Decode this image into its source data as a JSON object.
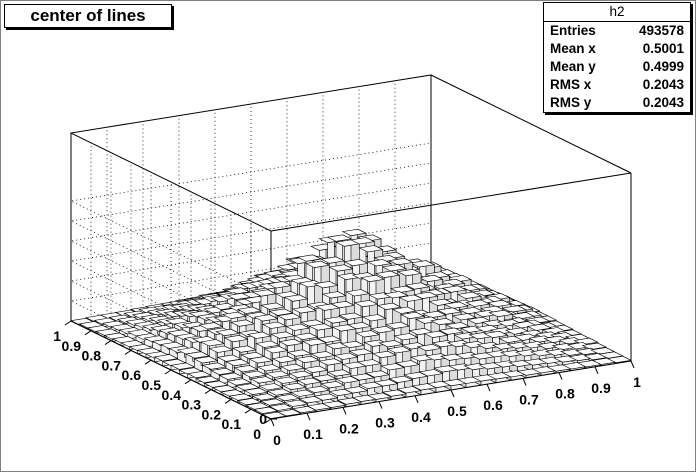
{
  "title": "center of lines",
  "stats": {
    "name": "h2",
    "rows": [
      {
        "label": "Entries",
        "value": "493578"
      },
      {
        "label": "Mean x",
        "value": "0.5001"
      },
      {
        "label": "Mean y",
        "value": "0.4999"
      },
      {
        "label": "RMS x",
        "value": "0.2043"
      },
      {
        "label": "RMS y",
        "value": "0.2043"
      }
    ]
  },
  "chart_data": {
    "type": "lego3d",
    "title": "center of lines",
    "x_ticks": [
      "0",
      "0.1",
      "0.2",
      "0.3",
      "0.4",
      "0.5",
      "0.6",
      "0.7",
      "0.8",
      "0.9",
      "1"
    ],
    "y_ticks": [
      "0",
      "0.1",
      "0.2",
      "0.3",
      "0.4",
      "0.5",
      "0.6",
      "0.7",
      "0.8",
      "0.9",
      "1"
    ],
    "z_ticks": [
      "0",
      "200",
      "400",
      "600",
      "800",
      "1000",
      "1200"
    ],
    "xlim": [
      0,
      1
    ],
    "ylim": [
      0,
      1
    ],
    "zlim": [
      0,
      1300
    ],
    "bins": 24,
    "peak": 1060,
    "peak_at": [
      0.5,
      0.5
    ],
    "shape": "pyramid, approximately peak * (1 - 2*|x-0.5|) * (1 - 2*|y-0.5|) plus noise",
    "grid": true,
    "colors": {
      "bar_top": "#ffffff",
      "bar_side_light": "#f2f2f2",
      "bar_side_dark": "#dcdcdc",
      "edge": "#000000"
    }
  }
}
